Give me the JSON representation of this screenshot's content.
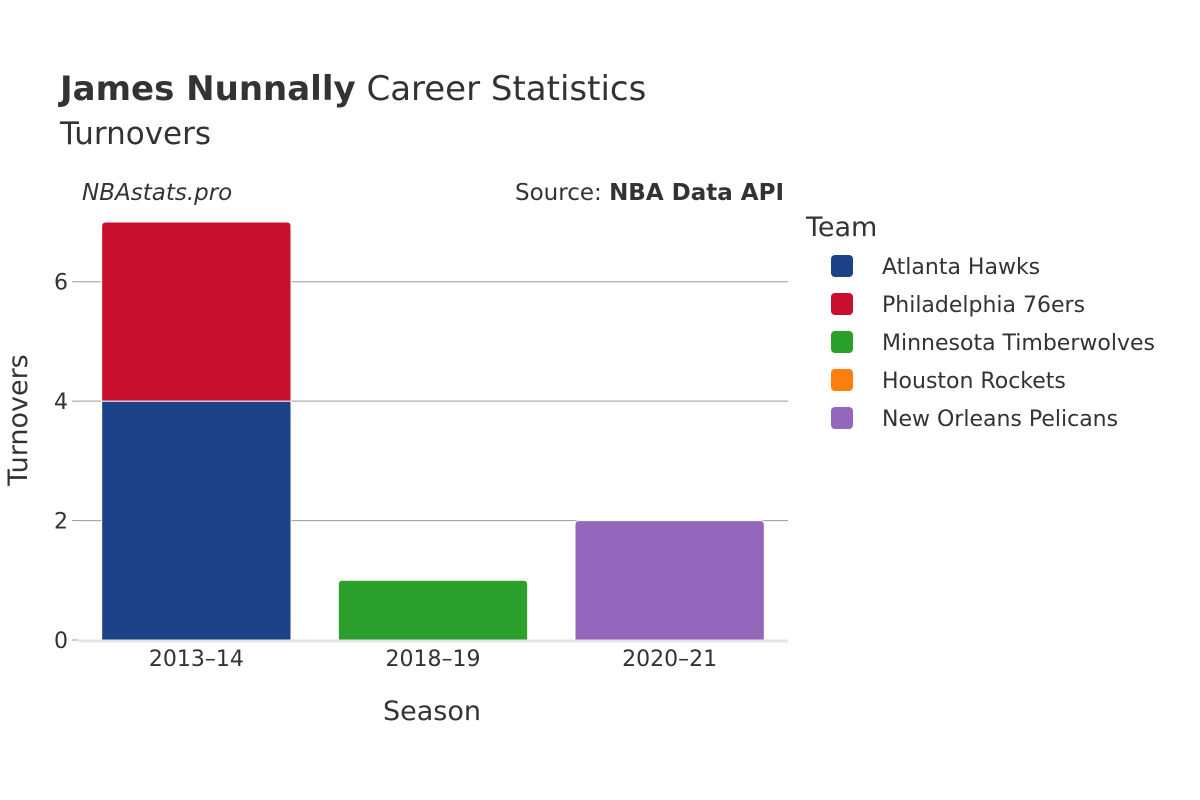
{
  "chart_data": {
    "type": "bar",
    "stacked": true,
    "title_bold": "James Nunnally",
    "title_rest": "Career Statistics",
    "subtitle": "Turnovers",
    "credit": "NBAstats.pro",
    "source_prefix": "Source: ",
    "source_name": "NBA Data API",
    "xlabel": "Season",
    "ylabel": "Turnovers",
    "categories": [
      "2013–14",
      "2018–19",
      "2020–21"
    ],
    "ylim": [
      0,
      7
    ],
    "yticks": [
      0,
      2,
      4,
      6
    ],
    "grid": true,
    "legend_title": "Team",
    "legend_position": "right",
    "series": [
      {
        "name": "Atlanta Hawks",
        "color": "#1d428a",
        "values": [
          4,
          0,
          0
        ]
      },
      {
        "name": "Philadelphia 76ers",
        "color": "#c8102e",
        "values": [
          3,
          0,
          0
        ]
      },
      {
        "name": "Minnesota Timberwolves",
        "color": "#2ca02c",
        "values": [
          0,
          1,
          0
        ]
      },
      {
        "name": "Houston Rockets",
        "color": "#ff7f0e",
        "values": [
          0,
          0,
          0
        ]
      },
      {
        "name": "New Orleans Pelicans",
        "color": "#9467bd",
        "values": [
          0,
          0,
          2
        ]
      }
    ]
  }
}
